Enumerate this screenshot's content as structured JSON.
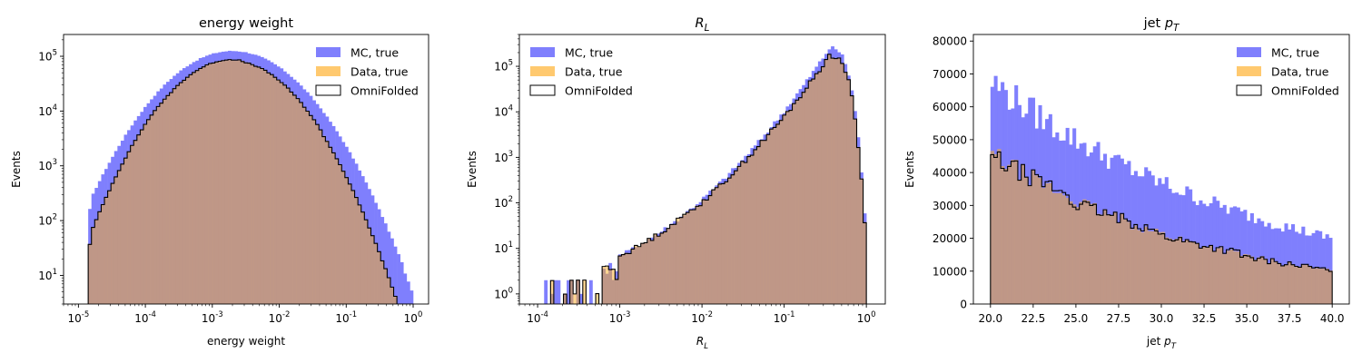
{
  "colors": {
    "mc": "#7f7ffd",
    "data": "#ffc96f",
    "overlap": "#bf9787",
    "omnifold": "#000000"
  },
  "legend": [
    "MC, true",
    "Data, true",
    "OmniFolded"
  ],
  "chart_data": [
    {
      "type": "histogram",
      "title": "energy weight",
      "title_italic": false,
      "xlabel": "energy weight",
      "xlabel_italic": false,
      "ylabel": "Events",
      "xscale": "log",
      "yscale": "log",
      "xlim": [
        6e-06,
        1.7
      ],
      "ylim": [
        3,
        250000.0
      ],
      "xticks": [
        1e-05,
        0.0001,
        0.001,
        0.01,
        0.1,
        1
      ],
      "xtick_labels": [
        [
          "10",
          "-5"
        ],
        [
          "10",
          "-4"
        ],
        [
          "10",
          "-3"
        ],
        [
          "10",
          "-2"
        ],
        [
          "10",
          "-1"
        ],
        [
          "10",
          "0"
        ]
      ],
      "yticks": [
        10,
        100,
        1000,
        10000,
        100000
      ],
      "ytick_labels": [
        [
          "10",
          "1"
        ],
        [
          "10",
          "2"
        ],
        [
          "10",
          "3"
        ],
        [
          "10",
          "4"
        ],
        [
          "10",
          "5"
        ]
      ],
      "legend_position": "top-right",
      "series": [
        {
          "name": "MC, true",
          "kind": "gauss",
          "xmin": 1.4e-05,
          "xmax": 1.0,
          "nbins": 100,
          "peak": 125000.0,
          "center": -2.7,
          "sigma": 0.6,
          "jitter": 0.02
        },
        {
          "name": "Data, true",
          "kind": "gauss",
          "xmin": 1.4e-05,
          "xmax": 1.0,
          "nbins": 100,
          "peak": 85000.0,
          "center": -2.72,
          "sigma": 0.55,
          "jitter": 0.02
        },
        {
          "name": "OmniFolded",
          "kind": "gauss",
          "xmin": 1.4e-05,
          "xmax": 1.0,
          "nbins": 100,
          "peak": 85000.0,
          "center": -2.72,
          "sigma": 0.55,
          "jitter": 0.01
        }
      ]
    },
    {
      "type": "histogram",
      "title": "R_L",
      "title_italic": true,
      "xlabel": "R_L",
      "xlabel_italic": true,
      "ylabel": "Events",
      "xscale": "log",
      "yscale": "log",
      "xlim": [
        6e-05,
        1.7
      ],
      "ylim": [
        0.6,
        500000.0
      ],
      "xticks": [
        0.0001,
        0.001,
        0.01,
        0.1,
        1
      ],
      "xtick_labels": [
        [
          "10",
          "-4"
        ],
        [
          "10",
          "-3"
        ],
        [
          "10",
          "-2"
        ],
        [
          "10",
          "-1"
        ],
        [
          "10",
          "0"
        ]
      ],
      "yticks": [
        1,
        10,
        100,
        1000,
        10000,
        100000
      ],
      "ytick_labels": [
        [
          "10",
          "0"
        ],
        [
          "10",
          "1"
        ],
        [
          "10",
          "2"
        ],
        [
          "10",
          "3"
        ],
        [
          "10",
          "4"
        ],
        [
          "10",
          "5"
        ]
      ],
      "legend_position": "top-left",
      "series": [
        {
          "name": "MC, true",
          "kind": "rl",
          "xmin": 0.00012,
          "xmax": 1.0,
          "nbins": 100,
          "peak": 250000.0,
          "jitter": 0.12
        },
        {
          "name": "Data, true",
          "kind": "rl",
          "xmin": 0.00012,
          "xmax": 1.0,
          "nbins": 100,
          "peak": 170000.0,
          "jitter": 0.12
        },
        {
          "name": "OmniFolded",
          "kind": "rl",
          "xmin": 0.00012,
          "xmax": 1.0,
          "nbins": 100,
          "peak": 170000.0,
          "jitter": 0.06
        }
      ]
    },
    {
      "type": "histogram",
      "title": "jet p_T",
      "title_italic": false,
      "xlabel": "jet p_T",
      "xlabel_italic": false,
      "ylabel": "Events",
      "xscale": "linear",
      "yscale": "linear",
      "xlim": [
        19,
        41
      ],
      "ylim": [
        0,
        82000
      ],
      "xticks": [
        20.0,
        22.5,
        25.0,
        27.5,
        30.0,
        32.5,
        35.0,
        37.5,
        40.0
      ],
      "xtick_labels": [
        [
          "20.0",
          ""
        ],
        [
          "22.5",
          ""
        ],
        [
          "25.0",
          ""
        ],
        [
          "27.5",
          ""
        ],
        [
          "30.0",
          ""
        ],
        [
          "32.5",
          ""
        ],
        [
          "35.0",
          ""
        ],
        [
          "37.5",
          ""
        ],
        [
          "40.0",
          ""
        ]
      ],
      "yticks": [
        0,
        10000,
        20000,
        30000,
        40000,
        50000,
        60000,
        70000,
        80000
      ],
      "ytick_labels": [
        [
          "0",
          ""
        ],
        [
          "10000",
          ""
        ],
        [
          "20000",
          ""
        ],
        [
          "30000",
          ""
        ],
        [
          "40000",
          ""
        ],
        [
          "50000",
          ""
        ],
        [
          "60000",
          ""
        ],
        [
          "70000",
          ""
        ],
        [
          "80000",
          ""
        ]
      ],
      "legend_position": "top-right",
      "series": [
        {
          "name": "MC, true",
          "kind": "pt",
          "xmin": 20,
          "xmax": 40,
          "nbins": 100,
          "start": 68000,
          "end": 20000,
          "jitter": 0.08
        },
        {
          "name": "Data, true",
          "kind": "pt",
          "xmin": 20,
          "xmax": 40,
          "nbins": 100,
          "start": 46000,
          "end": 10000,
          "jitter": 0.07
        },
        {
          "name": "OmniFolded",
          "kind": "pt",
          "xmin": 20,
          "xmax": 40,
          "nbins": 100,
          "start": 46000,
          "end": 10000,
          "jitter": 0.05
        }
      ]
    }
  ]
}
